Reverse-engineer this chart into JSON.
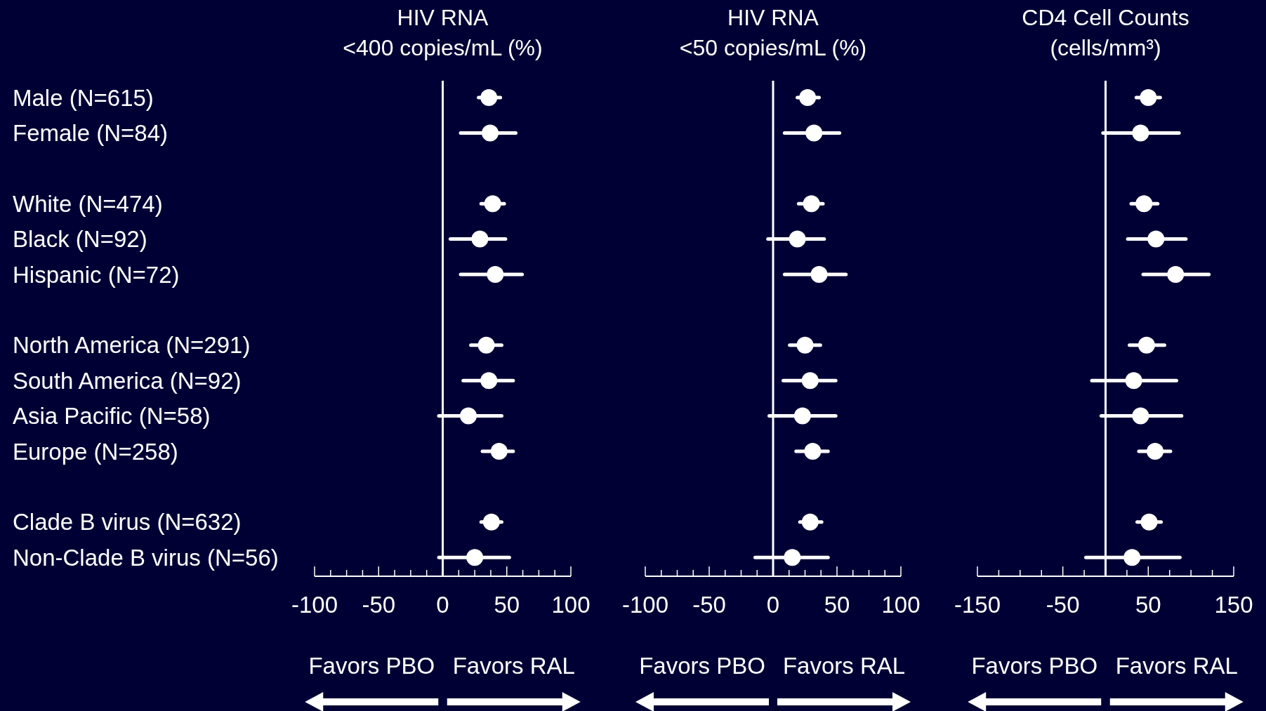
{
  "chart_data": [
    {
      "type": "scatter",
      "orientation": "horizontal",
      "title": "HIV RNA\n<400 copies/mL (%)",
      "marker": "circle",
      "color": "#ffffff",
      "categories": [
        "Male (N=615)",
        "Female (N=84)",
        null,
        "White (N=474)",
        "Black (N=92)",
        "Hispanic (N=72)",
        null,
        "North America (N=291)",
        "South America (N=92)",
        "Asia Pacific (N=58)",
        "Europe (N=258)",
        null,
        "Clade B virus (N=632)",
        "Non-Clade B virus (N=56)"
      ],
      "values": [
        36,
        37,
        null,
        39,
        29,
        41,
        null,
        34,
        36,
        20,
        44,
        null,
        38,
        25
      ],
      "errors": [
        [
          28,
          45
        ],
        [
          14,
          57
        ],
        null,
        [
          30,
          48
        ],
        [
          6,
          49
        ],
        [
          14,
          62
        ],
        null,
        [
          22,
          46
        ],
        [
          16,
          55
        ],
        [
          -3,
          46
        ],
        [
          31,
          55
        ],
        null,
        [
          30,
          46
        ],
        [
          -3,
          52
        ]
      ],
      "xlim": [
        -100,
        100
      ],
      "xticks": [
        -100,
        {
          "value": -87.5,
          "label": null
        },
        {
          "value": -75,
          "label": null
        },
        {
          "value": -62.5,
          "label": null
        },
        -50,
        {
          "value": -37.5,
          "label": null
        },
        {
          "value": -25,
          "label": null
        },
        {
          "value": -12.5,
          "label": null
        },
        0,
        {
          "value": 12.5,
          "label": null
        },
        {
          "value": 25,
          "label": null
        },
        {
          "value": 37.5,
          "label": null
        },
        50,
        {
          "value": 62.5,
          "label": null
        },
        {
          "value": 75,
          "label": null
        },
        {
          "value": 87.5,
          "label": null
        },
        100
      ],
      "ref_lines": [
        {
          "axis": "x",
          "value": 0,
          "color": "#ffffff"
        }
      ],
      "annotations": [
        "Favors PBO",
        "Favors RAL"
      ]
    },
    {
      "type": "scatter",
      "orientation": "horizontal",
      "title": "HIV RNA\n<50 copies/mL (%)",
      "marker": "circle",
      "color": "#ffffff",
      "tick_labels": "x",
      "categories": [
        null,
        null,
        null,
        null,
        null,
        null,
        null,
        null,
        null,
        null,
        null,
        null,
        null,
        null
      ],
      "values": [
        27,
        32,
        null,
        30,
        19,
        36,
        null,
        25,
        29,
        23,
        31,
        null,
        29,
        15
      ],
      "errors": [
        [
          19,
          36
        ],
        [
          9,
          52
        ],
        null,
        [
          20,
          39
        ],
        [
          -4,
          40
        ],
        [
          9,
          57
        ],
        null,
        [
          13,
          37
        ],
        [
          8,
          49
        ],
        [
          -3,
          49
        ],
        [
          18,
          43
        ],
        null,
        [
          21,
          38
        ],
        [
          -14,
          43
        ]
      ],
      "xlim": [
        -100,
        100
      ],
      "xticks": [
        -100,
        {
          "value": -87.5,
          "label": null
        },
        {
          "value": -75,
          "label": null
        },
        {
          "value": -62.5,
          "label": null
        },
        -50,
        {
          "value": -37.5,
          "label": null
        },
        {
          "value": -25,
          "label": null
        },
        {
          "value": -12.5,
          "label": null
        },
        0,
        {
          "value": 12.5,
          "label": null
        },
        {
          "value": 25,
          "label": null
        },
        {
          "value": 37.5,
          "label": null
        },
        50,
        {
          "value": 62.5,
          "label": null
        },
        {
          "value": 75,
          "label": null
        },
        {
          "value": 87.5,
          "label": null
        },
        100
      ],
      "ref_lines": [
        {
          "axis": "x",
          "value": 0,
          "color": "#ffffff"
        }
      ],
      "annotations": [
        "Favors PBO",
        "Favors RAL"
      ]
    },
    {
      "type": "scatter",
      "orientation": "horizontal",
      "title": "CD4 Cell Counts\n(cells/mm³)",
      "marker": "circle",
      "color": "#ffffff",
      "tick_labels": "x",
      "categories": [
        null,
        null,
        null,
        null,
        null,
        null,
        null,
        null,
        null,
        null,
        null,
        null,
        null,
        null
      ],
      "values": [
        50,
        41,
        null,
        45,
        59,
        82,
        null,
        48,
        33,
        41,
        58,
        null,
        51,
        31
      ],
      "errors": [
        [
          36,
          64
        ],
        [
          -3,
          86
        ],
        null,
        [
          30,
          61
        ],
        [
          26,
          94
        ],
        [
          44,
          121
        ],
        null,
        [
          28,
          69
        ],
        [
          -16,
          83
        ],
        [
          -5,
          89
        ],
        [
          39,
          76
        ],
        null,
        [
          37,
          65
        ],
        [
          -23,
          87
        ]
      ],
      "xlim": [
        -150,
        150
      ],
      "xticks": [
        -150,
        {
          "value": -125,
          "label": null
        },
        {
          "value": -100,
          "label": null
        },
        {
          "value": -75,
          "label": null
        },
        -50,
        {
          "value": -25,
          "label": null
        },
        {
          "value": 0,
          "label": null
        },
        {
          "value": 25,
          "label": null
        },
        50,
        {
          "value": 75,
          "label": null
        },
        {
          "value": 100,
          "label": null
        },
        {
          "value": 125,
          "label": null
        },
        150
      ],
      "ref_lines": [
        {
          "axis": "x",
          "value": 0,
          "color": "#ffffff"
        }
      ],
      "annotations": [
        "Favors PBO",
        "Favors RAL"
      ]
    }
  ]
}
